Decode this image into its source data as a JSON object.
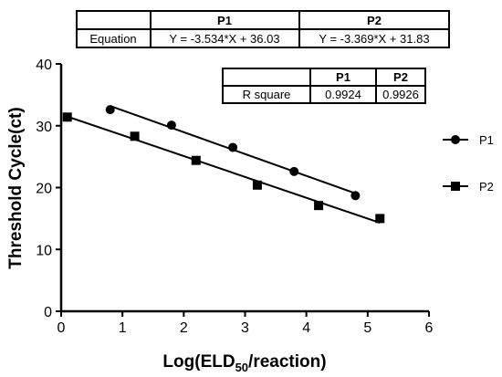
{
  "chart_data": {
    "type": "scatter",
    "xlabel_prefix": "Log(ELD",
    "xlabel_subscript": "50",
    "xlabel_suffix": "/reaction)",
    "ylabel": "Threshold Cycle(ct)",
    "xlim": [
      0,
      6
    ],
    "ylim": [
      0,
      40
    ],
    "xticks": [
      "0",
      "1",
      "2",
      "3",
      "4",
      "5",
      "6"
    ],
    "yticks": [
      "0",
      "10",
      "20",
      "30",
      "40"
    ],
    "legend_position": "right",
    "series": [
      {
        "name": "P1",
        "marker": "circle",
        "x": [
          0.8,
          1.8,
          2.8,
          3.8,
          4.8
        ],
        "y": [
          32.6,
          30.1,
          26.5,
          22.6,
          18.7
        ],
        "fit": {
          "slope": -3.534,
          "intercept": 36.03,
          "x_range": [
            0.8,
            4.8
          ]
        }
      },
      {
        "name": "P2",
        "marker": "square",
        "x": [
          0.1,
          1.2,
          2.2,
          3.2,
          4.2,
          5.2
        ],
        "y": [
          31.4,
          28.3,
          24.4,
          20.4,
          17.1,
          15.0
        ],
        "fit": {
          "slope": -3.369,
          "intercept": 31.83,
          "x_range": [
            0.1,
            5.2
          ]
        }
      }
    ]
  },
  "equation_table": {
    "headers": [
      "",
      "P1",
      "P2"
    ],
    "row_label": "Equation",
    "values": [
      "Y = -3.534*X + 36.03",
      "Y = -3.369*X + 31.83"
    ]
  },
  "rsquare_table": {
    "headers": [
      "",
      "P1",
      "P2"
    ],
    "row_label": "R square",
    "values": [
      "0.9924",
      "0.9926"
    ]
  }
}
